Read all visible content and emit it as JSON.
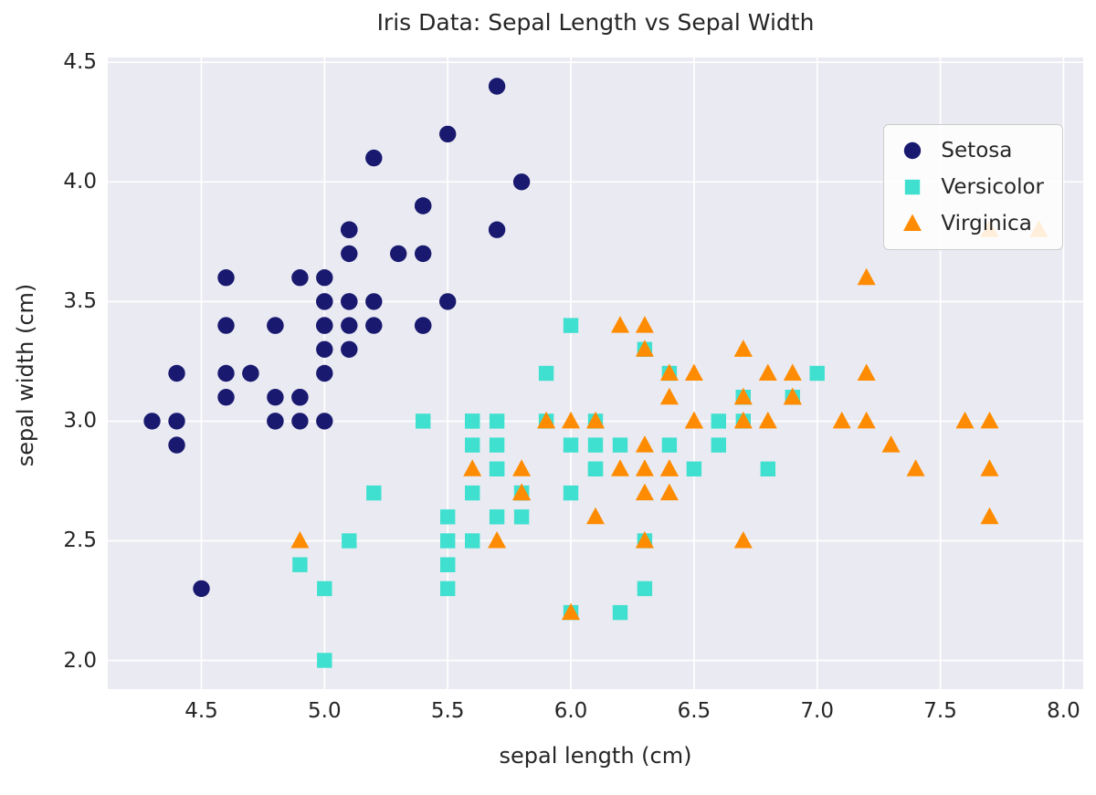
{
  "chart_data": {
    "type": "scatter",
    "title": "Iris Data: Sepal Length vs Sepal Width",
    "xlabel": "sepal length (cm)",
    "ylabel": "sepal width (cm)",
    "xlim": [
      4.12,
      8.08
    ],
    "ylim": [
      1.88,
      4.52
    ],
    "xticks": [
      4.5,
      5.0,
      5.5,
      6.0,
      6.5,
      7.0,
      7.5,
      8.0
    ],
    "yticks": [
      2.0,
      2.5,
      3.0,
      3.5,
      4.0,
      4.5
    ],
    "grid": true,
    "legend_position": "upper right",
    "plot_background": "#eaeaf2",
    "grid_color": "#ffffff",
    "series": [
      {
        "name": "Setosa",
        "marker": "circle",
        "color": "#191970",
        "points": [
          [
            5.1,
            3.5
          ],
          [
            4.9,
            3.0
          ],
          [
            4.7,
            3.2
          ],
          [
            4.6,
            3.1
          ],
          [
            5.0,
            3.6
          ],
          [
            5.4,
            3.9
          ],
          [
            4.6,
            3.4
          ],
          [
            5.0,
            3.4
          ],
          [
            4.4,
            2.9
          ],
          [
            4.9,
            3.1
          ],
          [
            5.4,
            3.7
          ],
          [
            4.8,
            3.4
          ],
          [
            4.8,
            3.0
          ],
          [
            4.3,
            3.0
          ],
          [
            5.8,
            4.0
          ],
          [
            5.7,
            4.4
          ],
          [
            5.4,
            3.9
          ],
          [
            5.1,
            3.5
          ],
          [
            5.7,
            3.8
          ],
          [
            5.1,
            3.8
          ],
          [
            5.4,
            3.4
          ],
          [
            5.1,
            3.7
          ],
          [
            4.6,
            3.6
          ],
          [
            5.1,
            3.3
          ],
          [
            4.8,
            3.4
          ],
          [
            5.0,
            3.0
          ],
          [
            5.0,
            3.4
          ],
          [
            5.2,
            3.5
          ],
          [
            5.2,
            3.4
          ],
          [
            4.7,
            3.2
          ],
          [
            4.8,
            3.1
          ],
          [
            5.4,
            3.4
          ],
          [
            5.2,
            4.1
          ],
          [
            5.5,
            4.2
          ],
          [
            4.9,
            3.1
          ],
          [
            5.0,
            3.2
          ],
          [
            5.5,
            3.5
          ],
          [
            4.9,
            3.6
          ],
          [
            4.4,
            3.0
          ],
          [
            5.1,
            3.4
          ],
          [
            5.0,
            3.5
          ],
          [
            4.5,
            2.3
          ],
          [
            4.4,
            3.2
          ],
          [
            5.0,
            3.5
          ],
          [
            5.1,
            3.8
          ],
          [
            4.8,
            3.0
          ],
          [
            5.1,
            3.8
          ],
          [
            4.6,
            3.2
          ],
          [
            5.3,
            3.7
          ],
          [
            5.0,
            3.3
          ]
        ]
      },
      {
        "name": "Versicolor",
        "marker": "square",
        "color": "#40e0d0",
        "points": [
          [
            7.0,
            3.2
          ],
          [
            6.4,
            3.2
          ],
          [
            6.9,
            3.1
          ],
          [
            5.5,
            2.3
          ],
          [
            6.5,
            2.8
          ],
          [
            5.7,
            2.8
          ],
          [
            6.3,
            3.3
          ],
          [
            4.9,
            2.4
          ],
          [
            6.6,
            2.9
          ],
          [
            5.2,
            2.7
          ],
          [
            5.0,
            2.0
          ],
          [
            5.9,
            3.0
          ],
          [
            6.0,
            2.2
          ],
          [
            6.1,
            2.9
          ],
          [
            5.6,
            2.9
          ],
          [
            6.7,
            3.1
          ],
          [
            5.6,
            3.0
          ],
          [
            5.8,
            2.7
          ],
          [
            6.2,
            2.2
          ],
          [
            5.6,
            2.5
          ],
          [
            5.9,
            3.2
          ],
          [
            6.1,
            2.8
          ],
          [
            6.3,
            2.5
          ],
          [
            6.1,
            2.8
          ],
          [
            6.4,
            2.9
          ],
          [
            6.6,
            3.0
          ],
          [
            6.8,
            2.8
          ],
          [
            6.7,
            3.0
          ],
          [
            6.0,
            2.9
          ],
          [
            5.7,
            2.6
          ],
          [
            5.5,
            2.4
          ],
          [
            5.5,
            2.4
          ],
          [
            5.8,
            2.7
          ],
          [
            6.0,
            2.7
          ],
          [
            5.4,
            3.0
          ],
          [
            6.0,
            3.4
          ],
          [
            6.7,
            3.1
          ],
          [
            6.3,
            2.3
          ],
          [
            5.6,
            3.0
          ],
          [
            5.5,
            2.5
          ],
          [
            5.5,
            2.6
          ],
          [
            6.1,
            3.0
          ],
          [
            5.8,
            2.6
          ],
          [
            5.0,
            2.3
          ],
          [
            5.6,
            2.7
          ],
          [
            5.7,
            3.0
          ],
          [
            5.7,
            2.9
          ],
          [
            6.2,
            2.9
          ],
          [
            5.1,
            2.5
          ],
          [
            5.7,
            2.8
          ]
        ]
      },
      {
        "name": "Virginica",
        "marker": "triangle",
        "color": "#ff8c00",
        "points": [
          [
            6.3,
            3.3
          ],
          [
            5.8,
            2.7
          ],
          [
            7.1,
            3.0
          ],
          [
            6.3,
            2.9
          ],
          [
            6.5,
            3.0
          ],
          [
            7.6,
            3.0
          ],
          [
            4.9,
            2.5
          ],
          [
            7.3,
            2.9
          ],
          [
            6.7,
            2.5
          ],
          [
            7.2,
            3.6
          ],
          [
            6.5,
            3.2
          ],
          [
            6.4,
            2.7
          ],
          [
            6.8,
            3.0
          ],
          [
            5.7,
            2.5
          ],
          [
            5.8,
            2.8
          ],
          [
            6.4,
            3.2
          ],
          [
            6.5,
            3.0
          ],
          [
            7.7,
            3.8
          ],
          [
            7.7,
            2.6
          ],
          [
            6.0,
            2.2
          ],
          [
            6.9,
            3.2
          ],
          [
            5.6,
            2.8
          ],
          [
            7.7,
            2.8
          ],
          [
            6.3,
            2.7
          ],
          [
            6.7,
            3.3
          ],
          [
            7.2,
            3.2
          ],
          [
            6.2,
            2.8
          ],
          [
            6.1,
            3.0
          ],
          [
            6.4,
            2.8
          ],
          [
            7.2,
            3.0
          ],
          [
            7.4,
            2.8
          ],
          [
            7.9,
            3.8
          ],
          [
            6.4,
            2.8
          ],
          [
            6.3,
            2.8
          ],
          [
            6.1,
            2.6
          ],
          [
            7.7,
            3.0
          ],
          [
            6.3,
            3.4
          ],
          [
            6.4,
            3.1
          ],
          [
            6.0,
            3.0
          ],
          [
            6.9,
            3.1
          ],
          [
            6.7,
            3.1
          ],
          [
            6.9,
            3.1
          ],
          [
            5.8,
            2.7
          ],
          [
            6.8,
            3.2
          ],
          [
            6.7,
            3.3
          ],
          [
            6.7,
            3.0
          ],
          [
            6.3,
            2.5
          ],
          [
            6.5,
            3.0
          ],
          [
            6.2,
            3.4
          ],
          [
            5.9,
            3.0
          ]
        ]
      }
    ]
  }
}
